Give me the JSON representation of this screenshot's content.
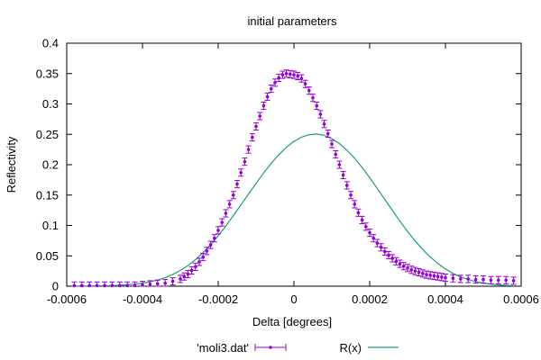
{
  "chart_data": {
    "type": "scatter",
    "title": "initial parameters",
    "xlabel": "Delta [degrees]",
    "ylabel": "Reflectivity",
    "xlim": [
      -0.0006,
      0.0006
    ],
    "ylim": [
      0,
      0.4
    ],
    "xticks": [
      -0.0006,
      -0.0004,
      -0.0002,
      0,
      0.0002,
      0.0004,
      0.0006
    ],
    "xtick_labels": [
      "-0.0006",
      "-0.0004",
      "-0.0002",
      "0",
      "0.0002",
      "0.0004",
      "0.0006"
    ],
    "yticks": [
      0,
      0.05,
      0.1,
      0.15,
      0.2,
      0.25,
      0.3,
      0.35,
      0.4
    ],
    "ytick_labels": [
      "0",
      "0.05",
      "0.1",
      "0.15",
      "0.2",
      "0.25",
      "0.3",
      "0.35",
      "0.4"
    ],
    "grid": false,
    "legend_position": "bottom",
    "series": [
      {
        "name": "'moli3.dat'",
        "kind": "errorbars",
        "color": "#9400d3",
        "x": [
          -0.00058,
          -0.00056,
          -0.00054,
          -0.00052,
          -0.0005,
          -0.00048,
          -0.00046,
          -0.00044,
          -0.00042,
          -0.0004,
          -0.00038,
          -0.00036,
          -0.00034,
          -0.00032,
          -0.0003,
          -0.00029,
          -0.00028,
          -0.00027,
          -0.00026,
          -0.00025,
          -0.00024,
          -0.00023,
          -0.00022,
          -0.00021,
          -0.0002,
          -0.00019,
          -0.00018,
          -0.00017,
          -0.00016,
          -0.00015,
          -0.00014,
          -0.00013,
          -0.00012,
          -0.00011,
          -0.0001,
          -9e-05,
          -8e-05,
          -7e-05,
          -6e-05,
          -5e-05,
          -4e-05,
          -3e-05,
          -2e-05,
          -1e-05,
          0,
          1e-05,
          2e-05,
          3e-05,
          4e-05,
          5e-05,
          6e-05,
          7e-05,
          8e-05,
          9e-05,
          0.0001,
          0.00011,
          0.00012,
          0.00013,
          0.00014,
          0.00015,
          0.00016,
          0.00017,
          0.00018,
          0.00019,
          0.0002,
          0.00021,
          0.00022,
          0.00023,
          0.00024,
          0.00025,
          0.00026,
          0.00027,
          0.00028,
          0.00029,
          0.0003,
          0.00031,
          0.00032,
          0.00033,
          0.00034,
          0.00035,
          0.00036,
          0.00037,
          0.00038,
          0.00039,
          0.0004,
          0.00042,
          0.00044,
          0.00046,
          0.00048,
          0.0005,
          0.00052,
          0.00054,
          0.00056,
          0.00058
        ],
        "y": [
          0.001,
          0.001,
          0.001,
          0.001,
          0.001,
          0.001,
          0.001,
          0.001,
          0.001,
          0.002,
          0.003,
          0.004,
          0.005,
          0.008,
          0.012,
          0.016,
          0.02,
          0.026,
          0.032,
          0.04,
          0.048,
          0.058,
          0.068,
          0.079,
          0.092,
          0.105,
          0.12,
          0.135,
          0.15,
          0.168,
          0.187,
          0.205,
          0.225,
          0.245,
          0.263,
          0.28,
          0.297,
          0.312,
          0.325,
          0.335,
          0.343,
          0.348,
          0.35,
          0.349,
          0.348,
          0.346,
          0.342,
          0.333,
          0.322,
          0.31,
          0.297,
          0.283,
          0.267,
          0.251,
          0.234,
          0.217,
          0.2,
          0.183,
          0.166,
          0.15,
          0.135,
          0.121,
          0.109,
          0.098,
          0.088,
          0.079,
          0.071,
          0.064,
          0.057,
          0.051,
          0.046,
          0.041,
          0.037,
          0.033,
          0.03,
          0.027,
          0.025,
          0.023,
          0.021,
          0.019,
          0.018,
          0.017,
          0.016,
          0.015,
          0.014,
          0.013,
          0.012,
          0.012,
          0.011,
          0.011,
          0.01,
          0.01,
          0.01,
          0.009
        ],
        "yerr": 0.006
      },
      {
        "name": "R(x)",
        "kind": "line",
        "color": "#1a9a8a",
        "x": [
          -0.00058,
          -0.00055,
          -0.00052,
          -0.0005,
          -0.00048,
          -0.00046,
          -0.00044,
          -0.00042,
          -0.0004,
          -0.00038,
          -0.00036,
          -0.00034,
          -0.00032,
          -0.0003,
          -0.00028,
          -0.00026,
          -0.00024,
          -0.00022,
          -0.0002,
          -0.00018,
          -0.00016,
          -0.00014,
          -0.00012,
          -0.0001,
          -8e-05,
          -6e-05,
          -4e-05,
          -2e-05,
          0,
          2e-05,
          4e-05,
          6e-05,
          8e-05,
          0.0001,
          0.00012,
          0.00014,
          0.00016,
          0.00018,
          0.0002,
          0.00022,
          0.00024,
          0.00026,
          0.00028,
          0.0003,
          0.00032,
          0.00034,
          0.00036,
          0.00038,
          0.0004,
          0.00042,
          0.00044,
          0.00046,
          0.00048,
          0.0005,
          0.00052,
          0.00055,
          0.00058
        ],
        "y": [
          0.0001,
          0.0002,
          0.0004,
          0.0006,
          0.001,
          0.0015,
          0.0023,
          0.0034,
          0.005,
          0.0072,
          0.0102,
          0.0142,
          0.0194,
          0.026,
          0.034,
          0.0437,
          0.0552,
          0.0683,
          0.083,
          0.099,
          0.1161,
          0.1338,
          0.1517,
          0.1694,
          0.1864,
          0.2022,
          0.2164,
          0.2286,
          0.2383,
          0.2454,
          0.2495,
          0.2505,
          0.2483,
          0.243,
          0.2348,
          0.2239,
          0.2106,
          0.1954,
          0.1787,
          0.161,
          0.1428,
          0.1246,
          0.1069,
          0.0901,
          0.0745,
          0.0604,
          0.048,
          0.0373,
          0.0284,
          0.0211,
          0.0154,
          0.0109,
          0.0076,
          0.0051,
          0.0034,
          0.0017,
          0.0008
        ]
      }
    ]
  }
}
